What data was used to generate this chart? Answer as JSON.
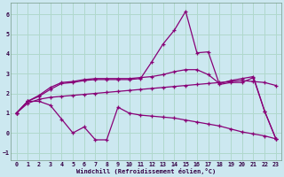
{
  "xlabel": "Windchill (Refroidissement éolien,°C)",
  "background_color": "#cce8f0",
  "grid_color": "#b0d8cc",
  "line_color": "#880077",
  "xlim": [
    -0.5,
    23.5
  ],
  "ylim": [
    -1.4,
    6.6
  ],
  "xticks": [
    0,
    1,
    2,
    3,
    4,
    5,
    6,
    7,
    8,
    9,
    10,
    11,
    12,
    13,
    14,
    15,
    16,
    17,
    18,
    19,
    20,
    21,
    22,
    23
  ],
  "yticks": [
    -1,
    0,
    1,
    2,
    3,
    4,
    5,
    6
  ],
  "series": [
    {
      "x": [
        0,
        1,
        2,
        3,
        4,
        5,
        6,
        7,
        8,
        9,
        10,
        11,
        12,
        13,
        14,
        15,
        16,
        17,
        18,
        19,
        20,
        21,
        22,
        23
      ],
      "y": [
        1.0,
        1.6,
        1.6,
        1.4,
        0.7,
        0.0,
        0.3,
        -0.35,
        -0.35,
        1.3,
        1.0,
        0.9,
        0.85,
        0.8,
        0.75,
        0.65,
        0.55,
        0.45,
        0.35,
        0.2,
        0.05,
        -0.05,
        -0.15,
        -0.3
      ]
    },
    {
      "x": [
        0,
        1,
        2,
        3,
        4,
        5,
        6,
        7,
        8,
        9,
        10,
        11,
        12,
        13,
        14,
        15,
        16,
        17,
        18,
        19,
        20,
        21,
        22,
        23
      ],
      "y": [
        1.0,
        1.5,
        1.7,
        1.8,
        1.85,
        1.9,
        1.95,
        2.0,
        2.05,
        2.1,
        2.15,
        2.2,
        2.25,
        2.3,
        2.35,
        2.4,
        2.45,
        2.5,
        2.55,
        2.6,
        2.65,
        2.6,
        2.55,
        2.4
      ]
    },
    {
      "x": [
        0,
        1,
        2,
        3,
        4,
        5,
        6,
        7,
        8,
        9,
        10,
        11,
        12,
        13,
        14,
        15,
        16,
        17,
        18,
        19,
        20,
        21,
        22,
        23
      ],
      "y": [
        1.0,
        1.6,
        1.9,
        2.3,
        2.55,
        2.6,
        2.7,
        2.75,
        2.75,
        2.75,
        2.75,
        2.8,
        2.85,
        2.95,
        3.1,
        3.2,
        3.2,
        2.95,
        2.5,
        2.65,
        2.75,
        2.85,
        1.1,
        -0.3
      ]
    },
    {
      "x": [
        0,
        1,
        2,
        3,
        4,
        5,
        6,
        7,
        8,
        9,
        10,
        11,
        12,
        13,
        14,
        15,
        16,
        17,
        18,
        19,
        20,
        21,
        22,
        23
      ],
      "y": [
        1.0,
        1.6,
        1.85,
        2.2,
        2.5,
        2.55,
        2.65,
        2.7,
        2.7,
        2.7,
        2.7,
        2.75,
        3.6,
        4.5,
        5.2,
        6.15,
        4.05,
        4.1,
        2.45,
        2.55,
        2.55,
        2.8,
        1.1,
        -0.3
      ]
    }
  ]
}
